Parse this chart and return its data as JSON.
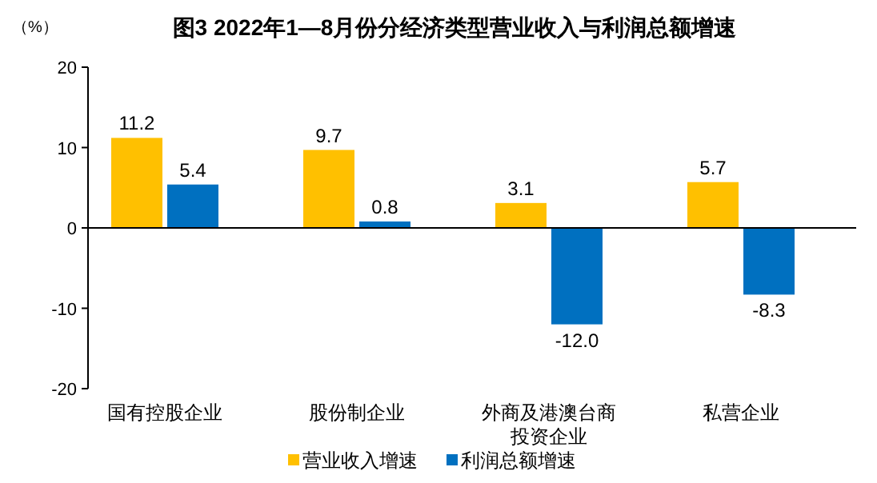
{
  "chart_data": {
    "type": "bar",
    "title": "图3  2022年1—8月份分经济类型营业收入与利润总额增速",
    "ylabel": "（%）",
    "categories": [
      "国有控股企业",
      "股份制企业",
      "外商及港澳台商投资企业",
      "私营企业"
    ],
    "series": [
      {
        "name": "营业收入增速",
        "color": "#ffc000",
        "values": [
          11.2,
          9.7,
          3.1,
          5.7
        ]
      },
      {
        "name": "利润总额增速",
        "color": "#0070c0",
        "values": [
          5.4,
          0.8,
          -12.0,
          -8.3
        ]
      }
    ],
    "value_labels": [
      [
        "11.2",
        "9.7",
        "3.1",
        "5.7"
      ],
      [
        "5.4",
        "0.8",
        "-12.0",
        "-8.3"
      ]
    ],
    "ylim": [
      -20,
      20
    ],
    "yticks": [
      -20,
      -10,
      0,
      10,
      20
    ],
    "ref_lines": [
      {
        "axis": "y",
        "value": 0,
        "color": "#000000"
      }
    ],
    "legend": "bottom"
  }
}
